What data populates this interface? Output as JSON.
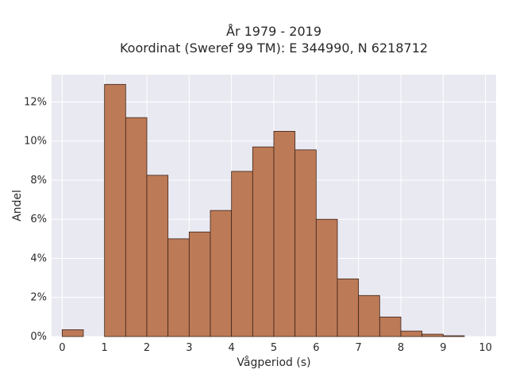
{
  "chart_data": {
    "type": "bar",
    "title_line1": "År 1979 - 2019",
    "title_line2": "Koordinat (Sweref 99 TM): E 344990, N 6218712",
    "xlabel": "Vågperiod (s)",
    "ylabel": "Andel",
    "bin_width": 0.5,
    "bins": [
      {
        "x": 0.0,
        "value": 0.35
      },
      {
        "x": 0.5,
        "value": 0.0
      },
      {
        "x": 1.0,
        "value": 12.9
      },
      {
        "x": 1.5,
        "value": 11.2
      },
      {
        "x": 2.0,
        "value": 8.25
      },
      {
        "x": 2.5,
        "value": 5.0
      },
      {
        "x": 3.0,
        "value": 5.35
      },
      {
        "x": 3.5,
        "value": 6.45
      },
      {
        "x": 4.0,
        "value": 8.45
      },
      {
        "x": 4.5,
        "value": 9.7
      },
      {
        "x": 5.0,
        "value": 10.5
      },
      {
        "x": 5.5,
        "value": 9.55
      },
      {
        "x": 6.0,
        "value": 6.0
      },
      {
        "x": 6.5,
        "value": 2.95
      },
      {
        "x": 7.0,
        "value": 2.1
      },
      {
        "x": 7.5,
        "value": 1.0
      },
      {
        "x": 8.0,
        "value": 0.28
      },
      {
        "x": 8.5,
        "value": 0.12
      },
      {
        "x": 9.0,
        "value": 0.04
      },
      {
        "x": 9.5,
        "value": 0.0
      }
    ],
    "x_ticks": [
      "0",
      "1",
      "2",
      "3",
      "4",
      "5",
      "6",
      "7",
      "8",
      "9",
      "10"
    ],
    "y_ticks": [
      "0%",
      "2%",
      "4%",
      "6%",
      "8%",
      "10%",
      "12%"
    ],
    "xlim": [
      -0.25,
      10.25
    ],
    "ylim": [
      0,
      13.4
    ],
    "grid": true,
    "bar_color": "#bd7a57",
    "bar_edge_color": "#3b2418",
    "plot_bg": "#e9e9f2",
    "grid_color": "#ffffff"
  }
}
